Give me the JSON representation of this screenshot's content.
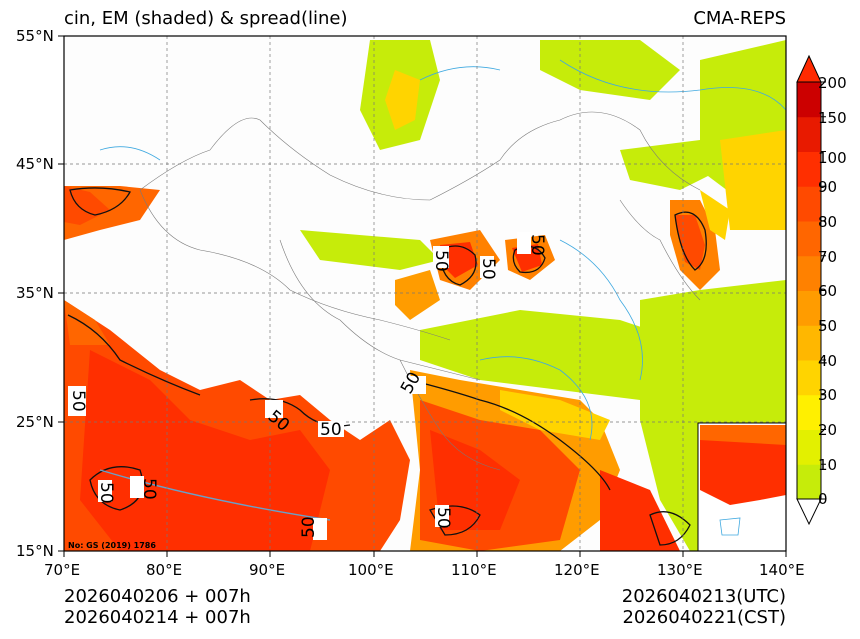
{
  "titles": {
    "left": "cin, EM (shaded) & spread(line)",
    "right": "CMA-REPS"
  },
  "axes": {
    "lat_labels": [
      "55°N",
      "45°N",
      "35°N",
      "25°N",
      "15°N"
    ],
    "lon_labels": [
      "70°E",
      "80°E",
      "90°E",
      "100°E",
      "110°E",
      "120°E",
      "130°E",
      "140°E"
    ]
  },
  "colorbar": {
    "labels": [
      "200",
      "150",
      "100",
      "90",
      "80",
      "70",
      "60",
      "50",
      "40",
      "30",
      "20",
      "10",
      "0"
    ],
    "colors": [
      "#c6ec0a",
      "#e3f000",
      "#fff000",
      "#ffd400",
      "#ffb700",
      "#ff9c00",
      "#ff8100",
      "#ff6600",
      "#ff4a00",
      "#ff2f00",
      "#e81a00",
      "#cc0000"
    ],
    "over_color": "#ff2a00"
  },
  "contour_labels": [
    "50",
    "50",
    "50",
    "50",
    "50",
    "50",
    "50",
    "50",
    "50",
    "50",
    "50"
  ],
  "footer": {
    "init_left_1": "2026040206  +  007h",
    "init_left_2": "2026040214  +  007h",
    "valid_utc": "2026040213(UTC)",
    "valid_cst": "2026040221(CST)"
  },
  "map_note": "No: GS (2019) 1786"
}
